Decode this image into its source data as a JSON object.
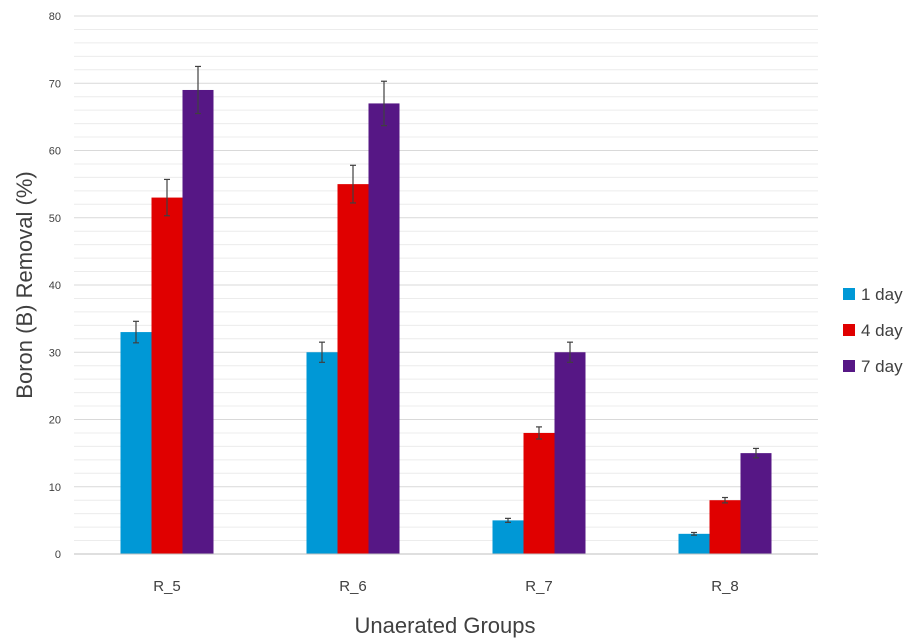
{
  "chart_data": {
    "type": "bar",
    "title": "",
    "xlabel": "Unaerated Groups",
    "ylabel": "Boron (B) Removal (%)",
    "ylim": [
      0,
      80
    ],
    "yticks": [
      0,
      10,
      20,
      30,
      40,
      50,
      60,
      70,
      80
    ],
    "categories": [
      "R_5",
      "R_6",
      "R_7",
      "R_8"
    ],
    "series": [
      {
        "name": "1 day",
        "color": "#0098d6",
        "values": [
          33,
          30,
          5,
          3
        ],
        "errors": [
          1.6,
          1.5,
          0.3,
          0.2
        ]
      },
      {
        "name": "4 day",
        "color": "#e00000",
        "values": [
          53,
          55,
          18,
          8
        ],
        "errors": [
          2.7,
          2.8,
          0.9,
          0.4
        ]
      },
      {
        "name": "7 day",
        "color": "#561785",
        "values": [
          69,
          67,
          30,
          15
        ],
        "errors": [
          3.5,
          3.3,
          1.5,
          0.7
        ]
      }
    ],
    "grid": true,
    "legend_position": "right"
  }
}
